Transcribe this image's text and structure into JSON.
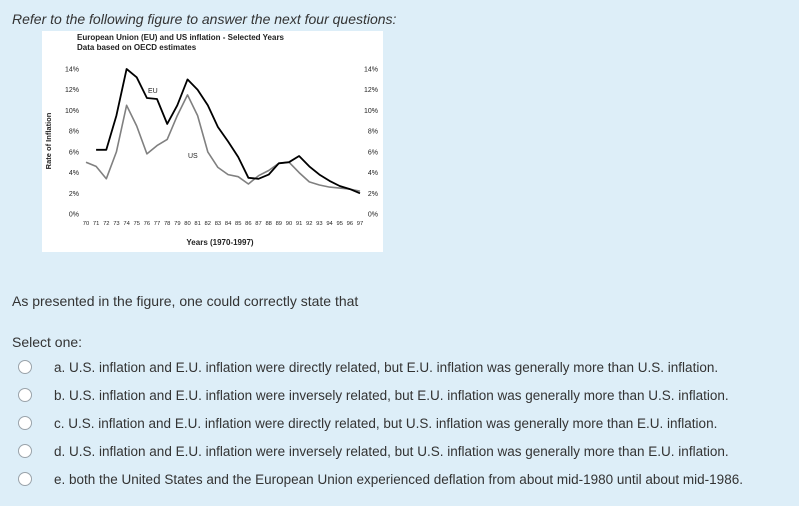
{
  "intro": "Refer to the following figure to answer the next four questions:",
  "question": "As presented in the figure, one could correctly state that",
  "select_label": "Select one:",
  "options": [
    {
      "label": "a. U.S. inflation and E.U. inflation were directly related, but E.U. inflation was generally more than U.S. inflation."
    },
    {
      "label": "b. U.S. inflation and E.U. inflation were inversely related, but E.U. inflation was generally more than U.S. inflation."
    },
    {
      "label": "c. U.S. inflation and E.U. inflation were directly related, but U.S. inflation was generally more than E.U. inflation."
    },
    {
      "label": "d. U.S. inflation and E.U. inflation were inversely related, but U.S. inflation was generally more than E.U. inflation."
    },
    {
      "label": "e. both the United States and the European Union experienced deflation from about mid-1980 until about mid-1986."
    }
  ],
  "colors": {
    "page_bg": "#ddeef8",
    "eu_series": "#000000",
    "us_series": "#808080"
  },
  "chart_data": {
    "type": "line",
    "title": "European Union (EU) and US inflation - Selected Years",
    "subtitle": "Data based on OECD estimates",
    "xlabel": "Years (1970-1997)",
    "ylabel": "Rate of Inflation",
    "ylim": [
      0,
      14
    ],
    "y_ticks": [
      "0%",
      "2%",
      "4%",
      "6%",
      "8%",
      "10%",
      "12%",
      "14%"
    ],
    "x": [
      "70",
      "71",
      "72",
      "73",
      "74",
      "75",
      "76",
      "77",
      "78",
      "79",
      "80",
      "81",
      "82",
      "83",
      "84",
      "85",
      "86",
      "87",
      "88",
      "89",
      "90",
      "91",
      "92",
      "93",
      "94",
      "95",
      "96",
      "97"
    ],
    "series": [
      {
        "name": "EU",
        "color": "#000000",
        "values": [
          null,
          6.2,
          6.2,
          9.5,
          14.0,
          13.2,
          11.2,
          11.1,
          8.7,
          10.5,
          13.0,
          12.0,
          10.5,
          8.4,
          7.0,
          5.5,
          3.5,
          3.4,
          3.8,
          4.9,
          5.0,
          5.6,
          4.6,
          3.8,
          3.2,
          2.7,
          2.4,
          2.0
        ]
      },
      {
        "name": "US",
        "color": "#808080",
        "values": [
          5.0,
          4.6,
          3.4,
          6.0,
          10.5,
          8.5,
          5.8,
          6.6,
          7.2,
          9.5,
          11.5,
          9.5,
          6.0,
          4.5,
          3.8,
          3.6,
          2.9,
          3.7,
          4.2,
          4.9,
          5.0,
          4.0,
          3.1,
          2.8,
          2.6,
          2.5,
          2.4,
          2.2
        ]
      }
    ]
  }
}
